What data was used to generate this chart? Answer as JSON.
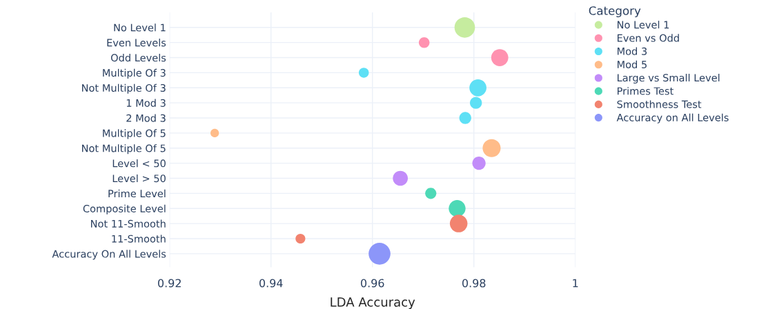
{
  "chart_data": {
    "type": "bubble",
    "orientation": "horizontal",
    "xlabel": "LDA Accuracy",
    "legend_title": "Category",
    "legend": "top right",
    "grid": true,
    "categories": [
      "No Level 1",
      "Even Levels",
      "Odd Levels",
      "Multiple Of 3",
      "Not Multiple Of 3",
      "1 Mod 3",
      "2 Mod 3",
      "Multiple Of 5",
      "Not Multiple Of 5",
      "Level < 50",
      "Level > 50",
      "Prime Level",
      "Composite Level",
      "Not 11-Smooth",
      "11-Smooth",
      "Accuracy On All Levels"
    ],
    "xlim": [
      0.92,
      1.0
    ],
    "xticks": [
      0.92,
      0.94,
      0.96,
      0.98,
      {
        "value": 1.0,
        "label": "1"
      }
    ],
    "series": [
      {
        "name": "No Level 1",
        "color": "#c6ec9f",
        "values": [
          0.9782,
          null,
          null,
          null,
          null,
          null,
          null,
          null,
          null,
          null,
          null,
          null,
          null,
          null,
          null,
          null
        ],
        "sizes": [
          0.88,
          null,
          null,
          null,
          null,
          null,
          null,
          null,
          null,
          null,
          null,
          null,
          null,
          null,
          null,
          null
        ]
      },
      {
        "name": "Even vs Odd",
        "color": "#ff92b0",
        "values": [
          null,
          0.9702,
          0.9851,
          null,
          null,
          null,
          null,
          null,
          null,
          null,
          null,
          null,
          null,
          null,
          null,
          null
        ],
        "sizes": [
          null,
          0.24,
          0.61,
          null,
          null,
          null,
          null,
          null,
          null,
          null,
          null,
          null,
          null,
          null,
          null,
          null
        ]
      },
      {
        "name": "Mod 3",
        "color": "#5ee0f5",
        "values": [
          null,
          null,
          null,
          0.9583,
          0.9808,
          0.9804,
          0.9783,
          null,
          null,
          null,
          null,
          null,
          null,
          null,
          null,
          null
        ],
        "sizes": [
          null,
          null,
          null,
          0.21,
          0.61,
          0.3,
          0.3,
          null,
          null,
          null,
          null,
          null,
          null,
          null,
          null,
          null
        ]
      },
      {
        "name": "Mod 5",
        "color": "#ffbc89",
        "values": [
          null,
          null,
          null,
          null,
          null,
          null,
          null,
          0.9289,
          0.9835,
          null,
          null,
          null,
          null,
          null,
          null,
          null
        ],
        "sizes": [
          null,
          null,
          null,
          null,
          null,
          null,
          null,
          0.15,
          0.68,
          null,
          null,
          null,
          null,
          null,
          null,
          null
        ]
      },
      {
        "name": "Large vs Small Level",
        "color": "#c28cf9",
        "values": [
          null,
          null,
          null,
          null,
          null,
          null,
          null,
          null,
          null,
          0.981,
          0.9655,
          null,
          null,
          null,
          null,
          null
        ],
        "sizes": [
          null,
          null,
          null,
          null,
          null,
          null,
          null,
          null,
          null,
          0.37,
          0.47,
          null,
          null,
          null,
          null,
          null
        ]
      },
      {
        "name": "Primes Test",
        "color": "#4dd9b6",
        "values": [
          null,
          null,
          null,
          null,
          null,
          null,
          null,
          null,
          null,
          null,
          null,
          0.9715,
          0.9767,
          null,
          null,
          null
        ],
        "sizes": [
          null,
          null,
          null,
          null,
          null,
          null,
          null,
          null,
          null,
          null,
          null,
          0.26,
          0.59,
          null,
          null,
          null
        ]
      },
      {
        "name": "Smoothness Test",
        "color": "#f2836f",
        "values": [
          null,
          null,
          null,
          null,
          null,
          null,
          null,
          null,
          null,
          null,
          null,
          null,
          null,
          0.977,
          0.9458,
          null
        ],
        "sizes": [
          null,
          null,
          null,
          null,
          null,
          null,
          null,
          null,
          null,
          null,
          null,
          null,
          null,
          0.65,
          0.2,
          null
        ]
      },
      {
        "name": "Accuracy on All Levels",
        "color": "#8c96f9",
        "values": [
          null,
          null,
          null,
          null,
          null,
          null,
          null,
          null,
          null,
          null,
          null,
          null,
          null,
          null,
          null,
          0.9614
        ],
        "sizes": [
          null,
          null,
          null,
          null,
          null,
          null,
          null,
          null,
          null,
          null,
          null,
          null,
          null,
          null,
          null,
          1.0
        ]
      }
    ]
  }
}
